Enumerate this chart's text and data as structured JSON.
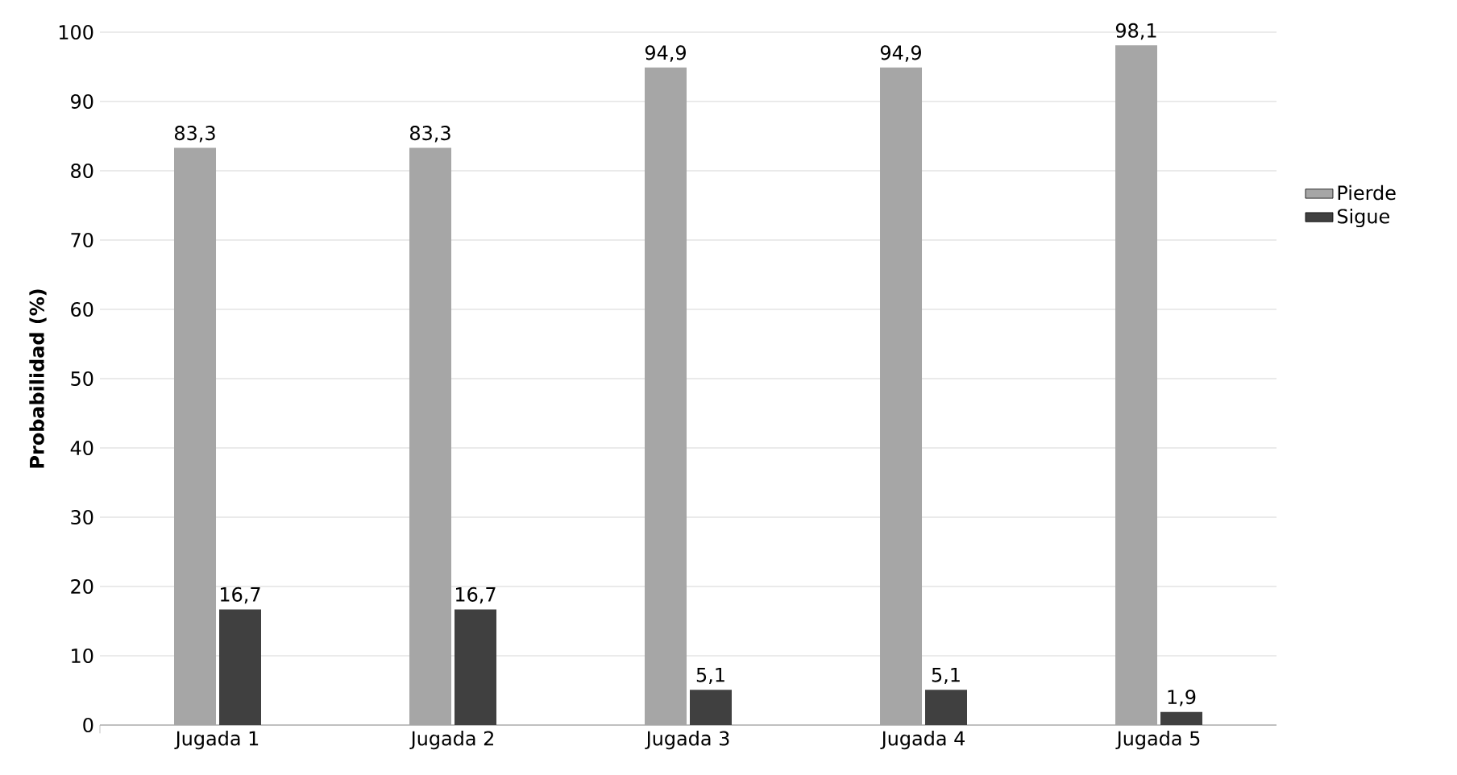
{
  "chart_data": {
    "type": "bar",
    "ylabel": "Probabilidad (%)",
    "categories": [
      "Jugada 1",
      "Jugada 2",
      "Jugada 3",
      "Jugada 4",
      "Jugada 5"
    ],
    "series": [
      {
        "name": "Pierde",
        "color": "#a6a6a6",
        "values": [
          83.3,
          83.3,
          94.9,
          94.9,
          98.1
        ],
        "value_labels": [
          "83,3",
          "83,3",
          "94,9",
          "94,9",
          "98,1"
        ]
      },
      {
        "name": "Sigue",
        "color": "#404040",
        "values": [
          16.7,
          16.7,
          5.1,
          5.1,
          1.9
        ],
        "value_labels": [
          "16,7",
          "16,7",
          "5,1",
          "5,1",
          "1,9"
        ]
      }
    ],
    "ylim": [
      0,
      100
    ],
    "yticks": [
      0,
      10,
      20,
      30,
      40,
      50,
      60,
      70,
      80,
      90,
      100
    ],
    "grid": "y",
    "legend": "right"
  }
}
